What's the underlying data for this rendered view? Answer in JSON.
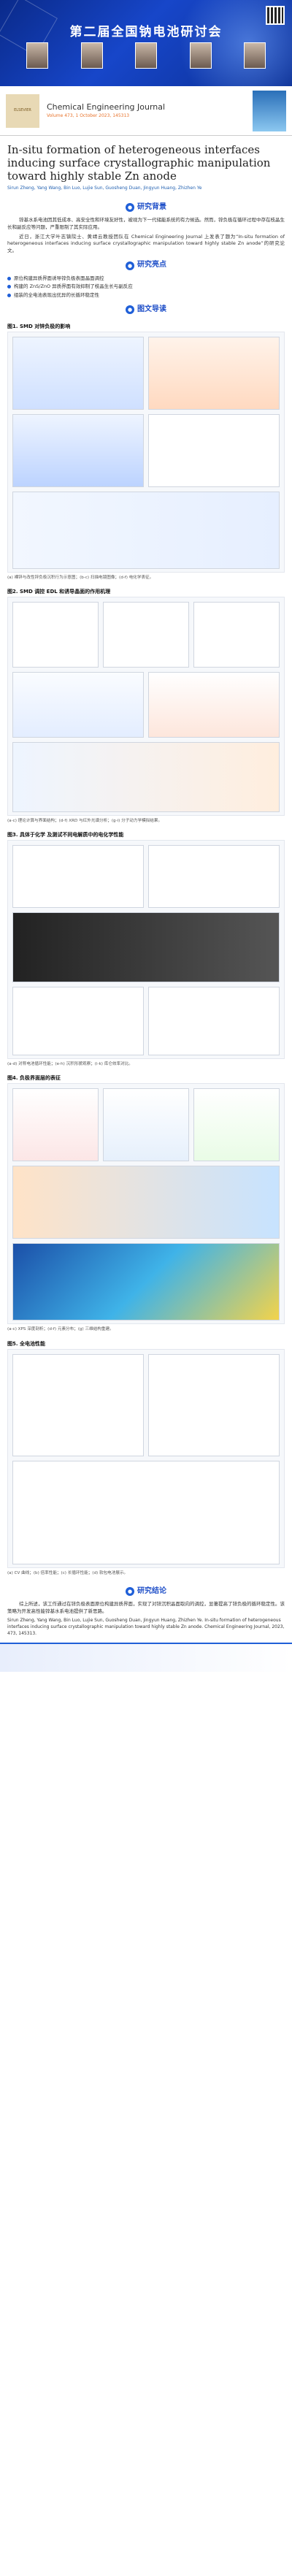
{
  "banner": {
    "org": "",
    "title": "第二届全国钠电池研讨会",
    "people": [
      "",
      "",
      "",
      "",
      ""
    ]
  },
  "journal": {
    "publisher": "ELSEVIER",
    "name": "Chemical Engineering Journal",
    "volume": "Volume 473, 1 October 2023, 145313"
  },
  "paper": {
    "title": "In-situ formation of heterogeneous interfaces inducing surface crystallographic manipulation toward highly stable Zn anode",
    "authors": "Sirun Zheng, Yang Wang, Bin Luo, Lujie Sun, Guosheng Duan, Jingyun Huang, Zhizhen Ye"
  },
  "sections": {
    "background": "研究背景",
    "highlights": "研究亮点",
    "figures": "图文导读",
    "conclusion": "研究结论"
  },
  "background_text": [
    "锌基水系电池因其低成本、高安全性和环境友好性，被视为下一代储能系统的有力候选。然而，锌负极在循环过程中存在枝晶生长和副反应等问题，严重限制了其实际应用。",
    "近日，浙江大学叶志镇院士、黄靖云教授团队在 Chemical Engineering Journal 上发表了题为“In-situ formation of heterogeneous interfaces inducing surface crystallographic manipulation toward highly stable Zn anode”的研究论文。"
  ],
  "highlights": [
    "原位构建异质界面诱导锌负极表面晶面调控",
    "构建的 ZnS/ZnO 异质界面有效抑制了枝晶生长与副反应",
    "组装的全电池表现出优异的长循环稳定性"
  ],
  "figs": [
    {
      "label": "图1. SMD 对锌负极的影响",
      "caption": "(a) 裸锌与改性锌负极沉积行为示意图；(b-c) 扫描电镜图像；(d-f) 电化学表征。"
    },
    {
      "label": "图2. SMD 调控 EDL 和诱导晶面的作用机理",
      "caption": "(a-c) 理论计算与界面结构；(d-f) XRD 与红外光谱分析；(g-i) 分子动力学模拟结果。"
    },
    {
      "label": "图3. 具体于化学 及测试不同电解质中的电化学性能",
      "caption": "(a-d) 对称电池循环性能；(e-h) 沉积形貌观察；(i-k) 库仑效率对比。"
    },
    {
      "label": "图4. 负极界面层的表征",
      "caption": "(a-c) XPS 深度剖析；(d-f) 元素分布；(g) 三维结构重建。"
    },
    {
      "label": "图5. 全电池性能",
      "caption": "(a) CV 曲线；(b) 倍率性能；(c) 长循环性能；(d) 软包电池展示。"
    }
  ],
  "conclusion_text": [
    "综上所述，该工作通过在锌负极表面原位构建异质界面，实现了对锌沉积晶面取向的调控，显著提高了锌负极的循环稳定性。该策略为开发高性能锌基水系电池提供了新思路。"
  ],
  "reference": "Sirun Zheng, Yang Wang, Bin Luo, Lujie Sun, Guosheng Duan, Jingyun Huang, Zhizhen Ye. In-situ formation of heterogeneous interfaces inducing surface crystallographic manipulation toward highly stable Zn anode. Chemical Engineering Journal, 2023, 473, 145313.",
  "colors": {
    "accent": "#1f5fd8",
    "banner": "#1746c9"
  }
}
